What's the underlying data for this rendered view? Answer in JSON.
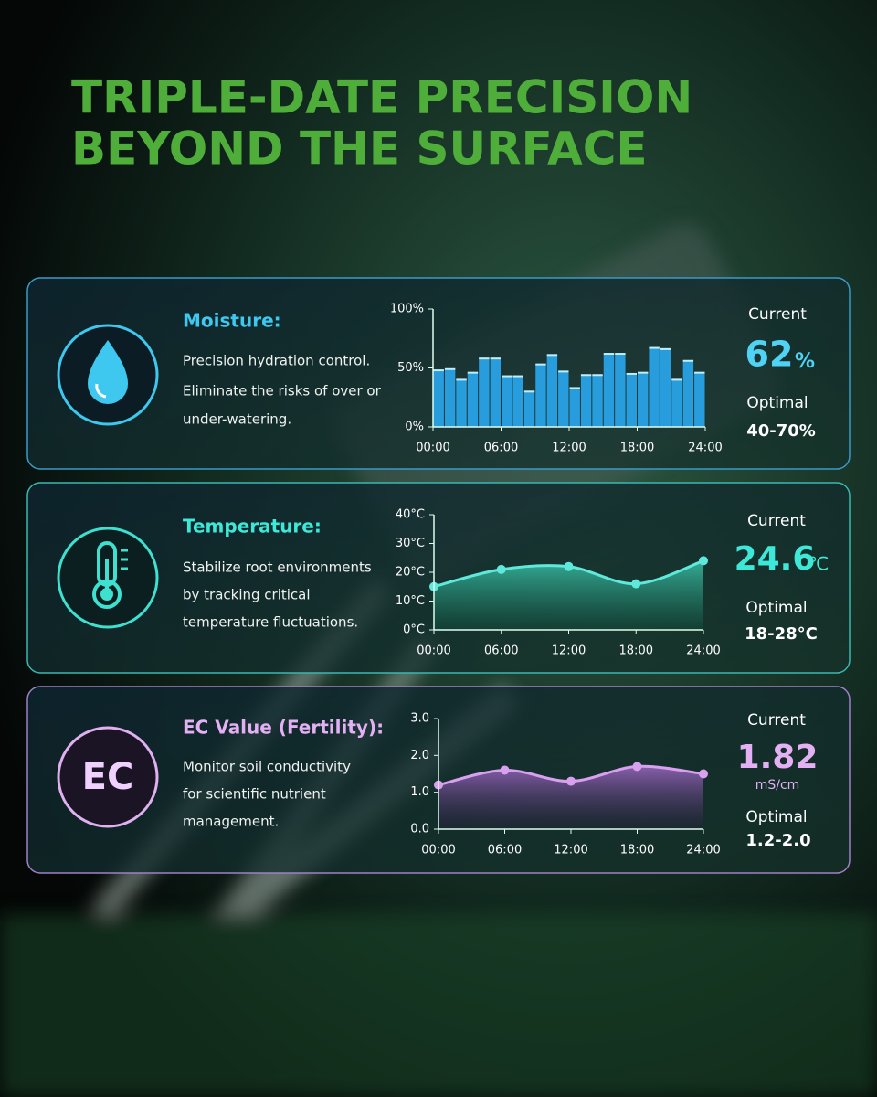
{
  "header": {
    "title_lines": [
      "TRIPLE-DATE PRECISION",
      "BEYOND THE  SURFACE"
    ]
  },
  "panels": [
    {
      "label": "Moisture:",
      "description": [
        "Precision hydration control.",
        "Eliminate the risks of over or",
        "under-watering."
      ],
      "current_label": "Current",
      "current": "62",
      "unit": "%",
      "optimal_label": "Optimal",
      "optimal": "40-70%"
    },
    {
      "label": "Temperature:",
      "description": [
        "Stabilize root environments",
        "by tracking critical",
        "temperature fluctuations."
      ],
      "current_label": "Current",
      "current": "24.6",
      "unit": "℃",
      "optimal_label": "Optimal",
      "optimal": "18-28°C"
    },
    {
      "label": "EC Value (Fertility):",
      "icon_text": "EC",
      "description": [
        "Monitor soil conductivity",
        "for scientific nutrient",
        "management."
      ],
      "current_label": "Current",
      "current": "1.82",
      "unit": "mS/cm",
      "optimal_label": "Optimal",
      "optimal": "1.2-2.0"
    }
  ],
  "chart_data": [
    {
      "type": "bar",
      "color": "#2aa8f0",
      "x": [
        0,
        1,
        2,
        3,
        4,
        5,
        6,
        7,
        8,
        9,
        10,
        11,
        12,
        13,
        14,
        15,
        16,
        17,
        18,
        19,
        20,
        21,
        22,
        23
      ],
      "values": [
        48,
        49,
        40,
        46,
        58,
        58,
        43,
        43,
        30,
        53,
        61,
        47,
        33,
        44,
        44,
        62,
        62,
        45,
        46,
        67,
        66,
        40,
        56,
        46
      ],
      "xlim": [
        0,
        24
      ],
      "xticks": [
        {
          "value": 0,
          "label": "00:00"
        },
        {
          "value": 6,
          "label": "06:00"
        },
        {
          "value": 12,
          "label": "12:00"
        },
        {
          "value": 18,
          "label": "18:00"
        },
        {
          "value": 24,
          "label": "24:00"
        }
      ],
      "ylim": [
        0,
        100
      ],
      "yticks": [
        {
          "value": 0,
          "label": "0%"
        },
        {
          "value": 50,
          "label": "50%"
        },
        {
          "value": 100,
          "label": "100%"
        }
      ]
    },
    {
      "type": "area",
      "color": "#5fe8dc",
      "x": [
        0,
        6,
        12,
        18,
        24
      ],
      "values": [
        15,
        21,
        22,
        16,
        24
      ],
      "xlim": [
        0,
        24
      ],
      "xticks": [
        {
          "value": 0,
          "label": "00:00"
        },
        {
          "value": 6,
          "label": "06:00"
        },
        {
          "value": 12,
          "label": "12:00"
        },
        {
          "value": 18,
          "label": "18:00"
        },
        {
          "value": 24,
          "label": "24:00"
        }
      ],
      "ylim": [
        0,
        40
      ],
      "yticks": [
        {
          "value": 0,
          "label": "0°C"
        },
        {
          "value": 10,
          "label": "10°C"
        },
        {
          "value": 20,
          "label": "20°C"
        },
        {
          "value": 30,
          "label": "30°C"
        },
        {
          "value": 40,
          "label": "40°C"
        }
      ]
    },
    {
      "type": "area",
      "color": "#d9a0f0",
      "x": [
        0,
        6,
        12,
        18,
        24
      ],
      "values": [
        1.2,
        1.6,
        1.3,
        1.7,
        1.5
      ],
      "xlim": [
        0,
        24
      ],
      "xticks": [
        {
          "value": 0,
          "label": "00:00"
        },
        {
          "value": 6,
          "label": "06:00"
        },
        {
          "value": 12,
          "label": "12:00"
        },
        {
          "value": 18,
          "label": "18:00"
        },
        {
          "value": 24,
          "label": "24:00"
        }
      ],
      "ylim": [
        0,
        3
      ],
      "yticks": [
        {
          "value": 0,
          "label": "0.0"
        },
        {
          "value": 1,
          "label": "1.0"
        },
        {
          "value": 2,
          "label": "2.0"
        },
        {
          "value": 3,
          "label": "3.0"
        }
      ]
    }
  ]
}
